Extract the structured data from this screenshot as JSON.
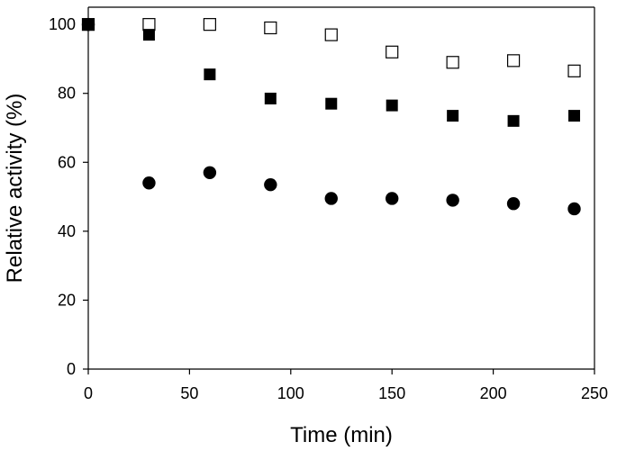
{
  "chart_data": {
    "type": "scatter",
    "title": "",
    "xlabel": "Time (min)",
    "ylabel": "Relative activity (%)",
    "xlim": [
      0,
      250
    ],
    "ylim": [
      0,
      105
    ],
    "x_ticks": [
      0,
      50,
      100,
      150,
      200,
      250
    ],
    "y_ticks": [
      0,
      20,
      40,
      60,
      80,
      100
    ],
    "grid": false,
    "legend": "none",
    "series": [
      {
        "marker": "open-square",
        "color": "#000000",
        "points": [
          {
            "x": 0,
            "y": 100
          },
          {
            "x": 30,
            "y": 100
          },
          {
            "x": 60,
            "y": 100
          },
          {
            "x": 90,
            "y": 99
          },
          {
            "x": 120,
            "y": 97
          },
          {
            "x": 150,
            "y": 92
          },
          {
            "x": 180,
            "y": 89
          },
          {
            "x": 210,
            "y": 89.5
          },
          {
            "x": 240,
            "y": 86.5
          }
        ]
      },
      {
        "marker": "filled-square",
        "color": "#000000",
        "points": [
          {
            "x": 0,
            "y": 100
          },
          {
            "x": 30,
            "y": 97
          },
          {
            "x": 60,
            "y": 85.5
          },
          {
            "x": 90,
            "y": 78.5
          },
          {
            "x": 120,
            "y": 77
          },
          {
            "x": 150,
            "y": 76.5
          },
          {
            "x": 180,
            "y": 73.5
          },
          {
            "x": 210,
            "y": 72
          },
          {
            "x": 240,
            "y": 73.5
          }
        ]
      },
      {
        "marker": "filled-circle",
        "color": "#000000",
        "points": [
          {
            "x": 0,
            "y": 100
          },
          {
            "x": 30,
            "y": 54
          },
          {
            "x": 60,
            "y": 57
          },
          {
            "x": 90,
            "y": 53.5
          },
          {
            "x": 120,
            "y": 49.5
          },
          {
            "x": 150,
            "y": 49.5
          },
          {
            "x": 180,
            "y": 49
          },
          {
            "x": 210,
            "y": 48
          },
          {
            "x": 240,
            "y": 46.5
          }
        ]
      }
    ]
  }
}
